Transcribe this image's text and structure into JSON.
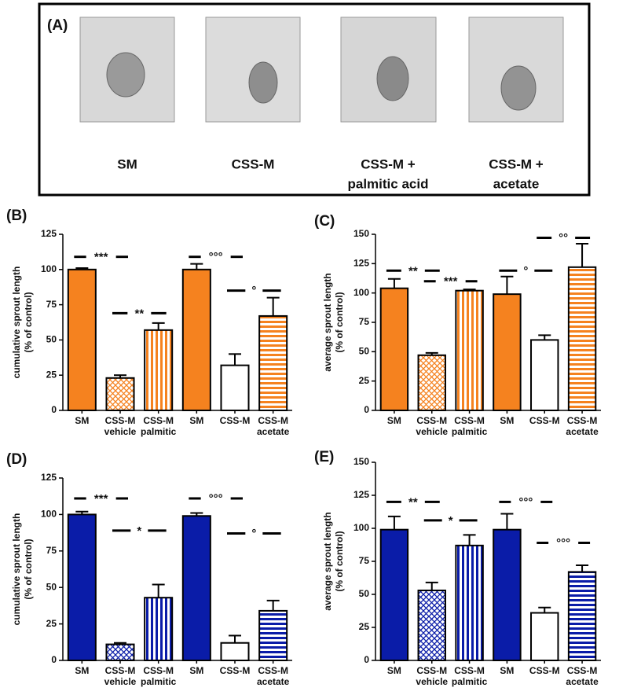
{
  "panel_a": {
    "label": "(A)",
    "captions": [
      [
        "SM"
      ],
      [
        "CSS-M"
      ],
      [
        "CSS-M +",
        "palmitic acid"
      ],
      [
        "CSS-M +",
        "acetate"
      ]
    ]
  },
  "chart_data": [
    {
      "type": "bar",
      "panel": "(B)",
      "ylabel": [
        "cumulative sprout length",
        "(% of control)"
      ],
      "categories": [
        [
          "SM"
        ],
        [
          "CSS-M",
          "vehicle"
        ],
        [
          "CSS-M",
          "palmitic"
        ],
        [
          "SM"
        ],
        [
          "CSS-M"
        ],
        [
          "CSS-M",
          "acetate"
        ]
      ],
      "values": [
        100,
        23,
        57,
        100,
        32,
        67
      ],
      "errors": [
        1,
        2,
        5,
        4,
        8,
        13
      ],
      "patterns": [
        "solid",
        "cross",
        "vertical",
        "solid",
        "none",
        "horizontal"
      ],
      "color": "#f5821f",
      "ylim": [
        0,
        125
      ],
      "yticks": [
        0,
        25,
        50,
        75,
        100,
        125
      ],
      "annotations": [
        {
          "text": "***",
          "pair": [
            0,
            1
          ],
          "y": 109
        },
        {
          "text": "**",
          "pair": [
            1,
            2
          ],
          "y": 69
        },
        {
          "text": "°°°",
          "pair": [
            3,
            4
          ],
          "y": 109
        },
        {
          "text": "°",
          "pair": [
            4,
            5
          ],
          "y": 85
        }
      ]
    },
    {
      "type": "bar",
      "panel": "(C)",
      "ylabel": [
        "average sprout length",
        "(% of control)"
      ],
      "categories": [
        [
          "SM"
        ],
        [
          "CSS-M",
          "vehicle"
        ],
        [
          "CSS-M",
          "palmitic"
        ],
        [
          "SM"
        ],
        [
          "CSS-M"
        ],
        [
          "CSS-M",
          "acetate"
        ]
      ],
      "values": [
        104,
        47,
        102,
        99,
        60,
        122
      ],
      "errors": [
        8,
        2,
        1,
        15,
        4,
        20
      ],
      "patterns": [
        "solid",
        "cross",
        "vertical",
        "solid",
        "none",
        "horizontal"
      ],
      "color": "#f5821f",
      "ylim": [
        0,
        150
      ],
      "yticks": [
        0,
        25,
        50,
        75,
        100,
        125,
        150
      ],
      "annotations": [
        {
          "text": "**",
          "pair": [
            0,
            1
          ],
          "y": 119
        },
        {
          "text": "***",
          "pair": [
            1,
            2
          ],
          "y": 110
        },
        {
          "text": "°",
          "pair": [
            3,
            4
          ],
          "y": 119
        },
        {
          "text": "°°",
          "pair": [
            4,
            5
          ],
          "y": 147
        }
      ]
    },
    {
      "type": "bar",
      "panel": "(D)",
      "ylabel": [
        "cumulative sprout length",
        "(% of control)"
      ],
      "categories": [
        [
          "SM"
        ],
        [
          "CSS-M",
          "vehicle"
        ],
        [
          "CSS-M",
          "palmitic"
        ],
        [
          "SM"
        ],
        [
          "CSS-M"
        ],
        [
          "CSS-M",
          "acetate"
        ]
      ],
      "values": [
        100,
        11,
        43,
        99,
        12,
        34
      ],
      "errors": [
        2,
        1,
        9,
        2,
        5,
        7
      ],
      "patterns": [
        "solid",
        "cross",
        "vertical",
        "solid",
        "none",
        "horizontal"
      ],
      "color": "#0a1ca8",
      "ylim": [
        0,
        125
      ],
      "yticks": [
        0,
        25,
        50,
        75,
        100,
        125
      ],
      "annotations": [
        {
          "text": "***",
          "pair": [
            0,
            1
          ],
          "y": 111
        },
        {
          "text": "*",
          "pair": [
            1,
            2
          ],
          "y": 89
        },
        {
          "text": "°°°",
          "pair": [
            3,
            4
          ],
          "y": 111
        },
        {
          "text": "°",
          "pair": [
            4,
            5
          ],
          "y": 87
        }
      ]
    },
    {
      "type": "bar",
      "panel": "(E)",
      "ylabel": [
        "average sprout length",
        "(% of control)"
      ],
      "categories": [
        [
          "SM"
        ],
        [
          "CSS-M",
          "vehicle"
        ],
        [
          "CSS-M",
          "palmitic"
        ],
        [
          "SM"
        ],
        [
          "CSS-M"
        ],
        [
          "CSS-M",
          "acetate"
        ]
      ],
      "values": [
        99,
        53,
        87,
        99,
        36,
        67
      ],
      "errors": [
        10,
        6,
        8,
        12,
        4,
        5
      ],
      "patterns": [
        "solid",
        "cross",
        "vertical",
        "solid",
        "none",
        "horizontal"
      ],
      "color": "#0a1ca8",
      "ylim": [
        0,
        150
      ],
      "yticks": [
        0,
        25,
        50,
        75,
        100,
        125,
        150
      ],
      "annotations": [
        {
          "text": "**",
          "pair": [
            0,
            1
          ],
          "y": 120
        },
        {
          "text": "*",
          "pair": [
            1,
            2
          ],
          "y": 106
        },
        {
          "text": "°°°",
          "pair": [
            3,
            4
          ],
          "y": 120
        },
        {
          "text": "°°°",
          "pair": [
            4,
            5
          ],
          "y": 89
        }
      ]
    }
  ]
}
